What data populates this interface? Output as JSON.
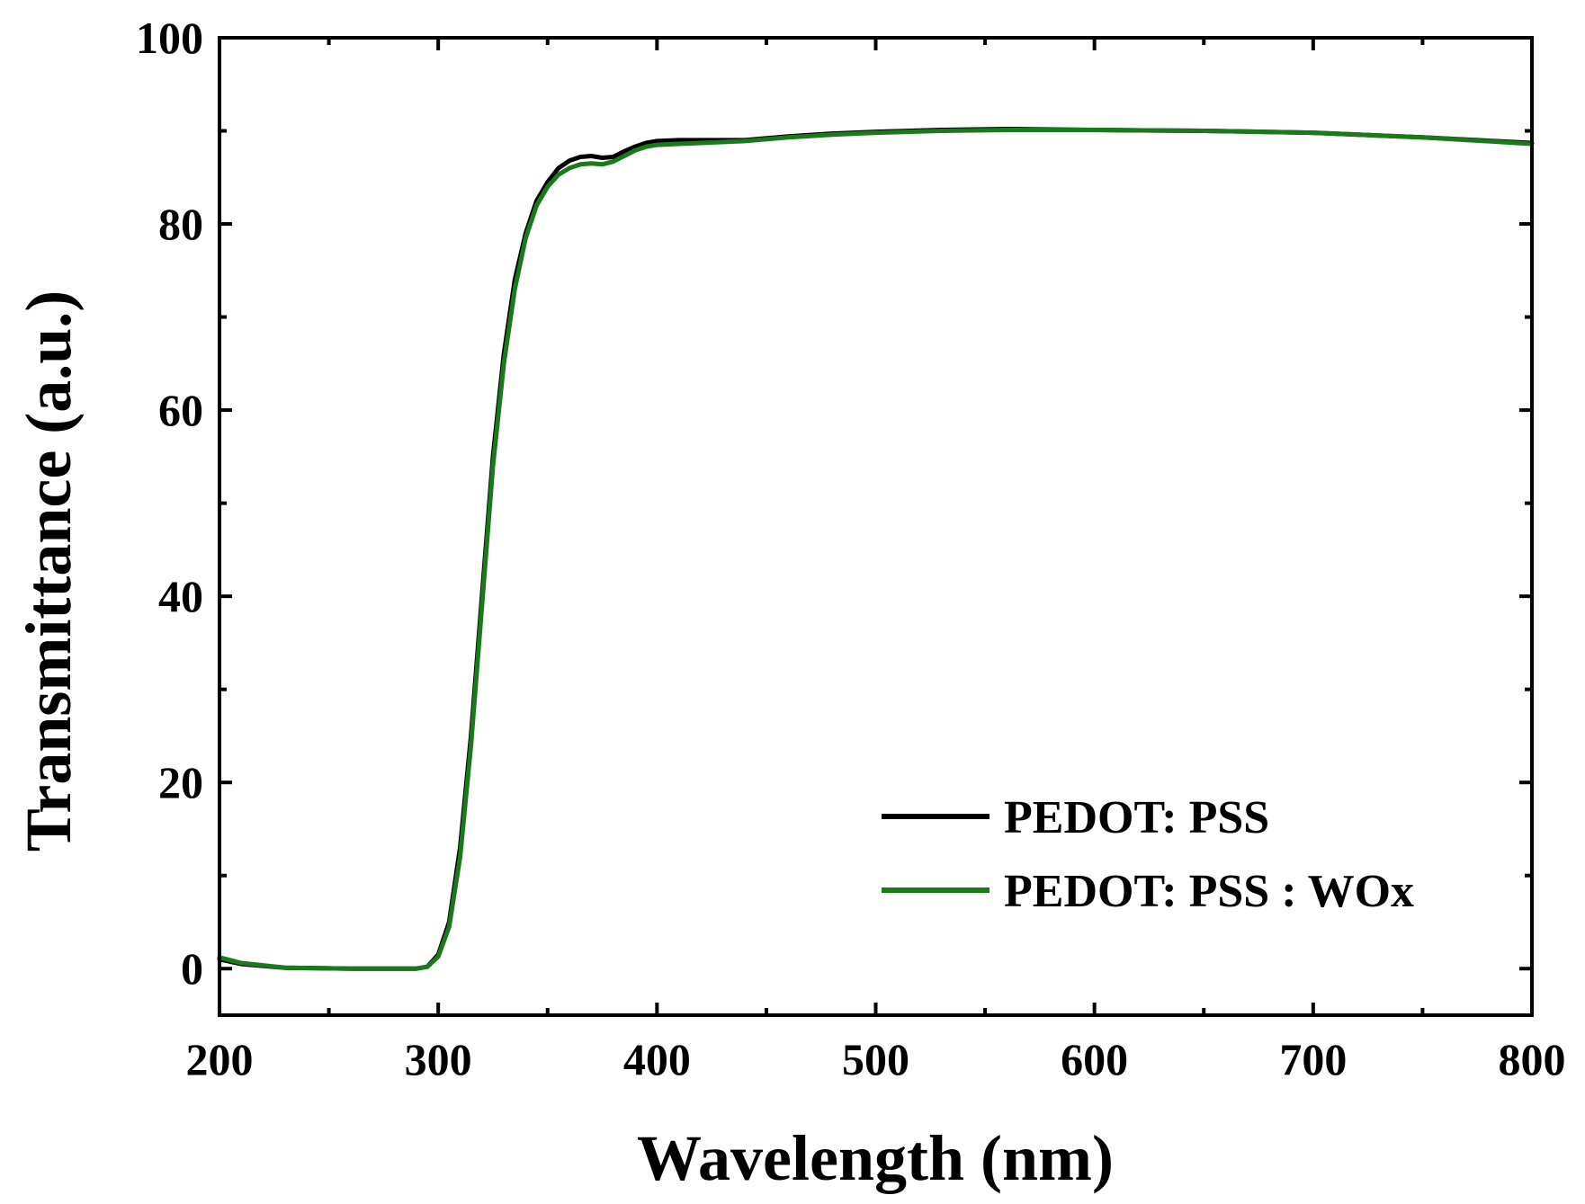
{
  "chart_data": {
    "type": "line",
    "title": "",
    "xlabel": "Wavelength (nm)",
    "ylabel": "Transmittance (a.u.)",
    "xlim": [
      200,
      800
    ],
    "ylim": [
      -5,
      100
    ],
    "xticks": [
      200,
      300,
      400,
      500,
      600,
      700,
      800
    ],
    "xtick_labels": [
      "200",
      "300",
      "400",
      "500",
      "600",
      "700",
      "800"
    ],
    "yticks": [
      0,
      20,
      40,
      60,
      80,
      100
    ],
    "ytick_labels": [
      "0",
      "20",
      "40",
      "60",
      "80",
      "100"
    ],
    "grid": false,
    "legend_position": "lower-right",
    "series": [
      {
        "name": "PEDOT: PSS",
        "color": "#000000",
        "x": [
          200,
          210,
          230,
          260,
          290,
          295,
          300,
          305,
          310,
          315,
          320,
          325,
          330,
          335,
          340,
          345,
          350,
          355,
          360,
          365,
          370,
          375,
          380,
          385,
          390,
          395,
          400,
          410,
          420,
          440,
          460,
          480,
          500,
          530,
          560,
          600,
          650,
          700,
          750,
          800
        ],
        "y": [
          1.0,
          0.5,
          0.1,
          0.0,
          0.0,
          0.2,
          1.5,
          5.0,
          13.0,
          25.0,
          40.0,
          55.0,
          66.0,
          74.0,
          79.0,
          82.5,
          84.5,
          86.0,
          86.8,
          87.2,
          87.3,
          87.1,
          87.2,
          87.8,
          88.3,
          88.7,
          88.9,
          89.0,
          89.0,
          89.0,
          89.4,
          89.7,
          89.9,
          90.1,
          90.2,
          90.1,
          90.0,
          89.8,
          89.3,
          88.7
        ]
      },
      {
        "name": "PEDOT: PSS : WOx",
        "color": "#1a7a1a",
        "x": [
          200,
          210,
          230,
          260,
          290,
          295,
          300,
          305,
          310,
          315,
          320,
          325,
          330,
          335,
          340,
          345,
          350,
          355,
          360,
          365,
          370,
          375,
          380,
          385,
          390,
          395,
          400,
          410,
          420,
          440,
          460,
          480,
          500,
          530,
          560,
          600,
          650,
          700,
          750,
          800
        ],
        "y": [
          1.2,
          0.6,
          0.1,
          0.0,
          0.0,
          0.2,
          1.3,
          4.5,
          12.0,
          24.0,
          39.0,
          54.0,
          65.0,
          73.0,
          78.5,
          82.0,
          84.0,
          85.3,
          86.0,
          86.4,
          86.5,
          86.4,
          86.7,
          87.3,
          87.9,
          88.3,
          88.5,
          88.6,
          88.7,
          88.9,
          89.3,
          89.6,
          89.8,
          90.0,
          90.1,
          90.1,
          90.0,
          89.8,
          89.3,
          88.6
        ]
      }
    ]
  }
}
